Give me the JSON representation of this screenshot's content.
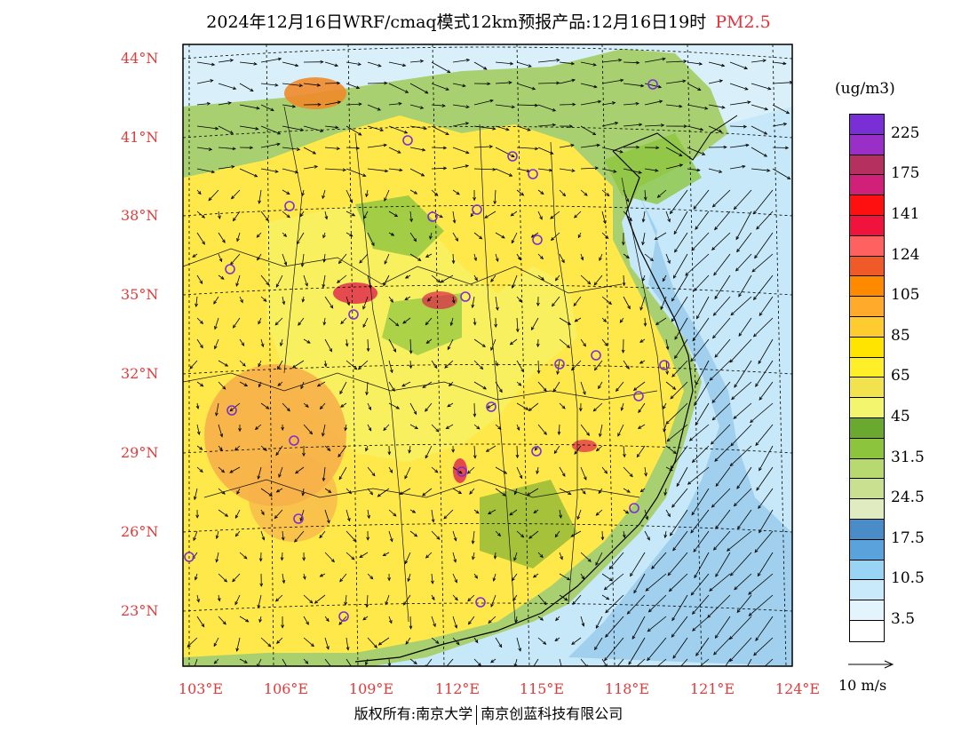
{
  "title": {
    "main": "2024年12月16日WRF/cmaq模式12km预报产品:12月16日19时",
    "pollutant": "PM2.5"
  },
  "lat_labels": [
    "44°N",
    "41°N",
    "38°N",
    "35°N",
    "32°N",
    "29°N",
    "26°N",
    "23°N"
  ],
  "lon_labels": [
    "103°E",
    "106°E",
    "109°E",
    "112°E",
    "115°E",
    "118°E",
    "121°E",
    "124°E"
  ],
  "colorbar": {
    "unit": "(ug/m3)",
    "labels": [
      "225",
      "175",
      "141",
      "124",
      "105",
      "85",
      "65",
      "45",
      "31.5",
      "24.5",
      "17.5",
      "10.5",
      "3.5"
    ],
    "colors": [
      "#7a2fd6",
      "#9a2fc8",
      "#b5305e",
      "#d0207a",
      "#ff1010",
      "#f0143c",
      "#ff6060",
      "#f05a28",
      "#ff8a00",
      "#ffaa2a",
      "#ffcc30",
      "#ffe400",
      "#ffef28",
      "#f2e24e",
      "#f3f56e",
      "#6aa830",
      "#8cc43e",
      "#b8d870",
      "#c8e090",
      "#e0ecc0",
      "#4a8cc8",
      "#5aa2dc",
      "#9ad4f4",
      "#c8eafa",
      "#e4f4fc",
      "#ffffff"
    ]
  },
  "wind_reference": "10 m/s",
  "footer": {
    "left": "版权所有:南京大学",
    "right": "南京创蓝科技有限公司"
  },
  "colors": {
    "label_red": "#e23a3a",
    "sea_blue": "#bfe4f6",
    "land_yellow": "#ffe94a",
    "land_orange": "#f7b04a",
    "land_green": "#a8d070"
  }
}
